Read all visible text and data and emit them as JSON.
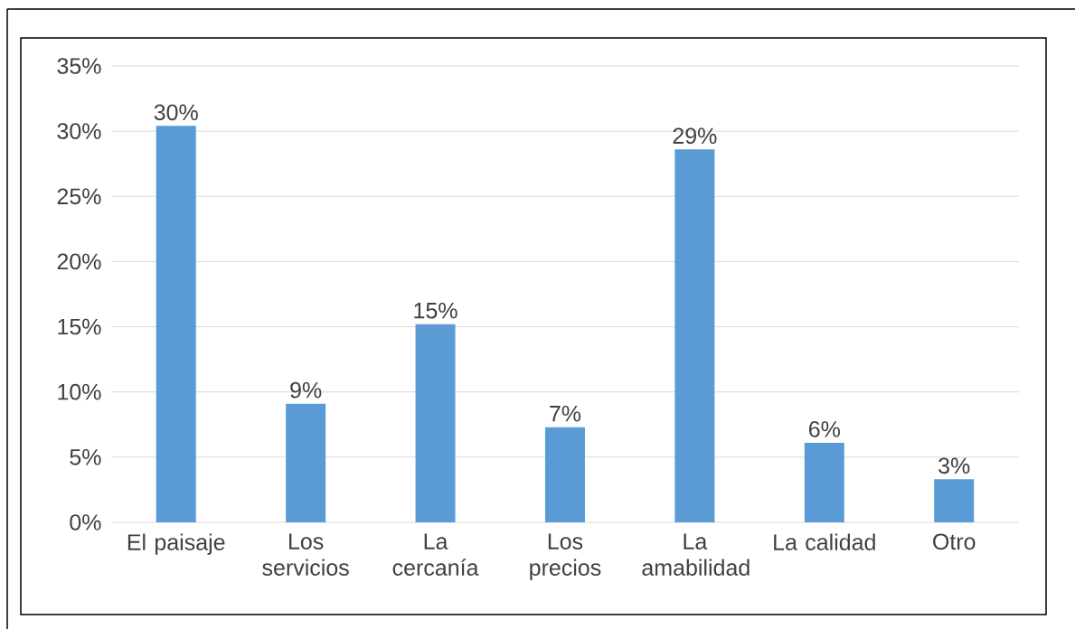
{
  "chart_data": {
    "type": "bar",
    "categories": [
      "El paisaje",
      "Los servicios",
      "La cercanía",
      "Los precios",
      "La amabilidad",
      "La calidad",
      "Otro"
    ],
    "values": [
      30.4,
      9.1,
      15.2,
      7.3,
      28.6,
      6.1,
      3.3
    ],
    "value_labels": [
      "30%",
      "9%",
      "15%",
      "7%",
      "29%",
      "6%",
      "3%"
    ],
    "color": "#5b9bd5",
    "ylim": [
      0,
      35
    ],
    "yticks": [
      {
        "value": 0,
        "label": "0%"
      },
      {
        "value": 5,
        "label": "5%"
      },
      {
        "value": 10,
        "label": "10%"
      },
      {
        "value": 15,
        "label": "15%"
      },
      {
        "value": 20,
        "label": "20%"
      },
      {
        "value": 25,
        "label": "25%"
      },
      {
        "value": 30,
        "label": "30%"
      },
      {
        "value": 35,
        "label": "35%"
      }
    ],
    "grid": "y"
  }
}
